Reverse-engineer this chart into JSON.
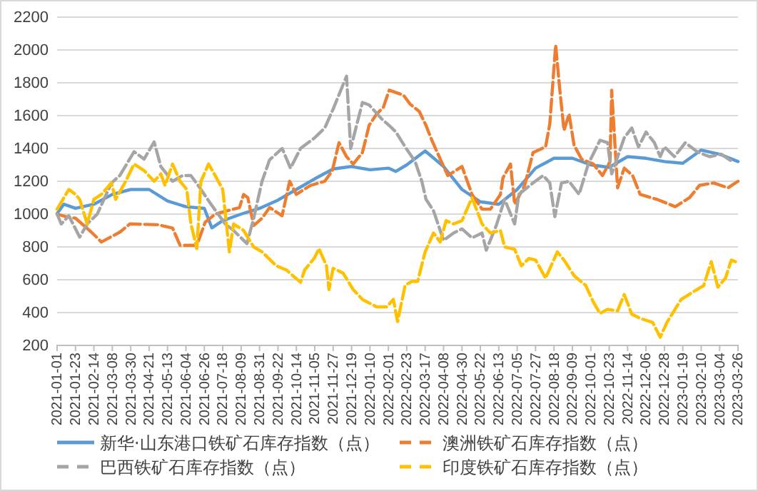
{
  "chart_data": {
    "type": "line",
    "ylim": [
      200,
      2200
    ],
    "yticks": [
      200,
      400,
      600,
      800,
      1000,
      1200,
      1400,
      1600,
      1800,
      2000,
      2200
    ],
    "xlim": [
      "2021-01-01",
      "2023-03-26"
    ],
    "xticks": [
      "2021-01-01",
      "2021-01-23",
      "2021-02-14",
      "2021-03-08",
      "2021-03-30",
      "2021-04-21",
      "2021-05-13",
      "2021-06-04",
      "2021-06-26",
      "2021-07-18",
      "2021-08-09",
      "2021-08-31",
      "2021-09-22",
      "2021-10-14",
      "2021-11-05",
      "2021-11-27",
      "2021-12-19",
      "2022-01-10",
      "2022-02-01",
      "2022-02-23",
      "2022-03-17",
      "2022-04-08",
      "2022-04-30",
      "2022-05-22",
      "2022-06-13",
      "2022-07-05",
      "2022-07-27",
      "2022-08-18",
      "2022-09-09",
      "2022-10-01",
      "2022-10-23",
      "2022-11-14",
      "2022-12-06",
      "2022-12-28",
      "2023-01-19",
      "2023-02-10",
      "2023-03-04",
      "2023-03-26"
    ],
    "grid": "y",
    "legend": "bottom",
    "marker": "none",
    "series": [
      {
        "name": "新华·山东港口铁矿石库存指数（点）",
        "color": "#5b9bd5",
        "line_style": "solid",
        "x": [
          "2021-01-01",
          "2021-01-09",
          "2021-01-23",
          "2021-02-14",
          "2021-03-08",
          "2021-03-30",
          "2021-04-21",
          "2021-05-13",
          "2021-06-04",
          "2021-06-26",
          "2021-07-05",
          "2021-07-18",
          "2021-08-09",
          "2021-08-31",
          "2021-09-22",
          "2021-10-14",
          "2021-11-05",
          "2021-11-27",
          "2021-12-19",
          "2022-01-10",
          "2022-02-01",
          "2022-02-10",
          "2022-02-23",
          "2022-03-17",
          "2022-04-08",
          "2022-04-30",
          "2022-05-22",
          "2022-06-13",
          "2022-07-05",
          "2022-07-27",
          "2022-08-18",
          "2022-09-09",
          "2022-10-01",
          "2022-10-23",
          "2022-11-14",
          "2022-12-06",
          "2022-12-28",
          "2023-01-19",
          "2023-02-10",
          "2023-03-04",
          "2023-03-26"
        ],
        "values": [
          1003,
          1060,
          1035,
          1060,
          1120,
          1150,
          1150,
          1080,
          1045,
          1035,
          916,
          960,
          1000,
          1035,
          1085,
          1150,
          1215,
          1275,
          1290,
          1270,
          1280,
          1260,
          1300,
          1385,
          1290,
          1150,
          1075,
          1060,
          1150,
          1280,
          1340,
          1340,
          1300,
          1285,
          1350,
          1340,
          1320,
          1310,
          1390,
          1365,
          1320
        ]
      },
      {
        "name": "澳洲铁矿石库存指数（点）",
        "color": "#ed7d31",
        "line_style": "dashed",
        "x": [
          "2021-01-01",
          "2021-01-11",
          "2021-01-23",
          "2021-02-11",
          "2021-02-23",
          "2021-03-17",
          "2021-03-29",
          "2021-05-02",
          "2021-05-19",
          "2021-05-28",
          "2021-06-17",
          "2021-06-27",
          "2021-07-09",
          "2021-08-07",
          "2021-08-12",
          "2021-08-17",
          "2021-08-24",
          "2021-09-03",
          "2021-09-12",
          "2021-09-27",
          "2021-10-06",
          "2021-10-14",
          "2021-10-31",
          "2021-11-17",
          "2021-11-26",
          "2021-12-04",
          "2021-12-13",
          "2021-12-21",
          "2022-01-01",
          "2022-01-09",
          "2022-01-18",
          "2022-01-26",
          "2022-02-02",
          "2022-02-19",
          "2022-02-27",
          "2022-03-10",
          "2022-03-18",
          "2022-03-25",
          "2022-04-08",
          "2022-04-13",
          "2022-04-30",
          "2022-05-12",
          "2022-05-24",
          "2022-06-03",
          "2022-06-15",
          "2022-06-18",
          "2022-06-27",
          "2022-07-02",
          "2022-07-14",
          "2022-07-24",
          "2022-08-08",
          "2022-08-13",
          "2022-08-20",
          "2022-08-25",
          "2022-08-30",
          "2022-09-05",
          "2022-09-11",
          "2022-09-20",
          "2022-10-04",
          "2022-10-15",
          "2022-10-24",
          "2022-10-26",
          "2022-11-02",
          "2022-11-10",
          "2022-11-20",
          "2022-11-29",
          "2022-12-19",
          "2023-01-10",
          "2023-01-27",
          "2023-02-08",
          "2023-02-25",
          "2023-03-14",
          "2023-03-26"
        ],
        "values": [
          1000,
          985,
          975,
          890,
          830,
          890,
          940,
          935,
          915,
          810,
          810,
          950,
          1000,
          1040,
          1120,
          1100,
          930,
          975,
          1040,
          990,
          1200,
          1120,
          1175,
          1200,
          1265,
          1435,
          1350,
          1305,
          1375,
          1540,
          1610,
          1650,
          1755,
          1725,
          1670,
          1625,
          1540,
          1450,
          1290,
          1235,
          1290,
          1120,
          1030,
          1030,
          1120,
          1220,
          1305,
          1060,
          1175,
          1375,
          1410,
          1550,
          2030,
          1755,
          1510,
          1610,
          1420,
          1335,
          1305,
          1235,
          1320,
          1755,
          1160,
          1280,
          1235,
          1120,
          1090,
          1045,
          1100,
          1175,
          1190,
          1160,
          1200
        ]
      },
      {
        "name": "巴西铁矿石库存指数（点）",
        "color": "#a5a5a5",
        "line_style": "dashed",
        "x": [
          "2021-01-01",
          "2021-01-06",
          "2021-01-15",
          "2021-01-20",
          "2021-01-28",
          "2021-02-06",
          "2021-02-18",
          "2021-03-07",
          "2021-03-17",
          "2021-04-03",
          "2021-04-15",
          "2021-04-27",
          "2021-05-05",
          "2021-05-19",
          "2021-05-31",
          "2021-06-10",
          "2021-06-22",
          "2021-07-04",
          "2021-07-21",
          "2021-07-31",
          "2021-08-16",
          "2021-08-24",
          "2021-09-03",
          "2021-09-12",
          "2021-09-27",
          "2021-10-07",
          "2021-10-19",
          "2021-11-05",
          "2021-11-17",
          "2021-11-27",
          "2021-12-13",
          "2021-12-18",
          "2022-01-01",
          "2022-01-09",
          "2022-01-24",
          "2022-02-02",
          "2022-02-10",
          "2022-02-21",
          "2022-03-05",
          "2022-03-13",
          "2022-03-18",
          "2022-03-27",
          "2022-04-08",
          "2022-04-20",
          "2022-04-30",
          "2022-05-12",
          "2022-05-24",
          "2022-05-29",
          "2022-06-10",
          "2022-06-20",
          "2022-07-02",
          "2022-07-07",
          "2022-07-24",
          "2022-08-05",
          "2022-08-13",
          "2022-08-19",
          "2022-08-27",
          "2022-09-05",
          "2022-09-17",
          "2022-09-28",
          "2022-10-12",
          "2022-10-21",
          "2022-10-26",
          "2022-11-10",
          "2022-11-19",
          "2022-11-27",
          "2022-12-06",
          "2022-12-16",
          "2022-12-23",
          "2022-12-28",
          "2023-01-09",
          "2023-01-22",
          "2023-02-05",
          "2023-02-20",
          "2023-03-06",
          "2023-03-19"
        ],
        "values": [
          1000,
          940,
          990,
          940,
          860,
          940,
          1000,
          1190,
          1235,
          1380,
          1335,
          1440,
          1290,
          1200,
          1235,
          1235,
          1150,
          1060,
          940,
          900,
          820,
          975,
          1200,
          1330,
          1400,
          1280,
          1400,
          1465,
          1525,
          1640,
          1840,
          1400,
          1680,
          1665,
          1580,
          1540,
          1500,
          1410,
          1320,
          1200,
          1090,
          1020,
          840,
          885,
          910,
          855,
          885,
          780,
          930,
          1090,
          940,
          1120,
          1190,
          1235,
          1190,
          985,
          1190,
          1200,
          1120,
          1305,
          1450,
          1435,
          1245,
          1465,
          1525,
          1410,
          1500,
          1435,
          1350,
          1410,
          1350,
          1435,
          1380,
          1350,
          1365,
          1320
        ]
      },
      {
        "name": "印度铁矿石库存指数（点）",
        "color": "#ffc000",
        "line_style": "dashed",
        "x": [
          "2021-01-01",
          "2021-01-15",
          "2021-01-23",
          "2021-01-28",
          "2021-02-06",
          "2021-02-14",
          "2021-02-23",
          "2021-03-07",
          "2021-03-12",
          "2021-03-24",
          "2021-04-03",
          "2021-04-15",
          "2021-04-27",
          "2021-05-05",
          "2021-05-10",
          "2021-05-19",
          "2021-05-28",
          "2021-06-05",
          "2021-06-10",
          "2021-06-17",
          "2021-06-22",
          "2021-07-01",
          "2021-07-09",
          "2021-07-18",
          "2021-07-26",
          "2021-07-31",
          "2021-08-12",
          "2021-08-24",
          "2021-09-03",
          "2021-09-20",
          "2021-10-02",
          "2021-10-19",
          "2021-10-24",
          "2021-11-05",
          "2021-11-10",
          "2021-11-19",
          "2021-11-22",
          "2021-11-27",
          "2021-12-09",
          "2021-12-21",
          "2022-01-01",
          "2022-01-18",
          "2022-01-30",
          "2022-02-07",
          "2022-02-12",
          "2022-02-21",
          "2022-03-01",
          "2022-03-08",
          "2022-03-17",
          "2022-03-27",
          "2022-04-04",
          "2022-04-11",
          "2022-04-20",
          "2022-04-30",
          "2022-05-12",
          "2022-05-24",
          "2022-06-03",
          "2022-06-15",
          "2022-06-20",
          "2022-07-02",
          "2022-07-10",
          "2022-07-19",
          "2022-07-27",
          "2022-08-08",
          "2022-08-22",
          "2022-08-30",
          "2022-09-11",
          "2022-09-25",
          "2022-10-04",
          "2022-10-12",
          "2022-10-21",
          "2022-11-02",
          "2022-11-10",
          "2022-11-19",
          "2022-11-29",
          "2022-12-14",
          "2022-12-23",
          "2022-12-31",
          "2023-01-17",
          "2023-01-31",
          "2023-02-13",
          "2023-02-22",
          "2023-03-02",
          "2023-03-11",
          "2023-03-18",
          "2023-03-23"
        ],
        "values": [
          1030,
          1150,
          1120,
          1090,
          940,
          1090,
          1120,
          1190,
          1090,
          1200,
          1305,
          1265,
          1200,
          1245,
          1175,
          1305,
          1200,
          1150,
          940,
          790,
          1200,
          1305,
          1235,
          1150,
          770,
          940,
          900,
          800,
          770,
          685,
          660,
          585,
          660,
          735,
          790,
          685,
          540,
          670,
          640,
          540,
          480,
          435,
          435,
          480,
          345,
          565,
          590,
          590,
          770,
          885,
          830,
          960,
          940,
          960,
          1100,
          940,
          885,
          900,
          800,
          785,
          685,
          730,
          720,
          610,
          770,
          720,
          625,
          565,
          465,
          395,
          420,
          410,
          510,
          390,
          365,
          340,
          250,
          340,
          480,
          525,
          565,
          710,
          555,
          610,
          720,
          710
        ]
      }
    ]
  }
}
